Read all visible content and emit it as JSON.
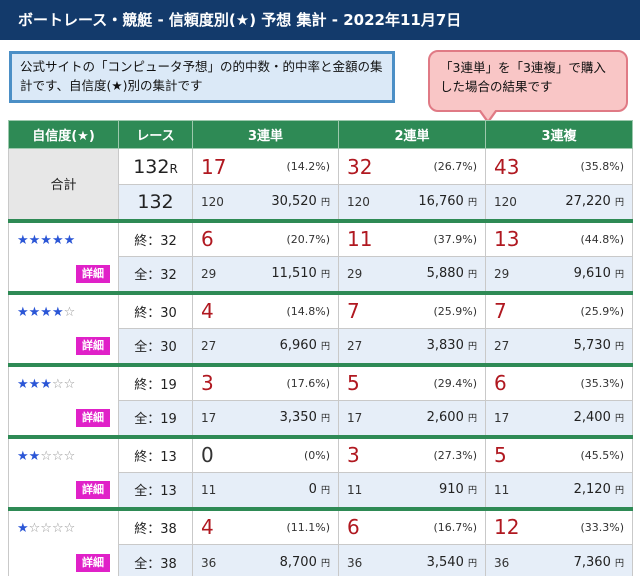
{
  "header": {
    "title": "ボートレース・競艇 - 信頼度別(★) 予想 集計 - 2022年11月7日"
  },
  "note": {
    "text": "公式サイトの「コンピュータ予想」の的中数・的中率と金額の集計です、自信度(★)別の集計です"
  },
  "bubble": {
    "text": "「3連単」を「3連複」で購入した場合の結果です"
  },
  "table": {
    "headers": [
      "自信度(★)",
      "レース",
      "3連単",
      "2連単",
      "3連複"
    ],
    "total": {
      "label": "合計",
      "hit_races": "132",
      "hit_races_unit": "R",
      "pay_races": "132",
      "cols": [
        {
          "hits": "17",
          "pct": "(14.2%)",
          "count": "120",
          "amount": "30,520",
          "unit": "円"
        },
        {
          "hits": "32",
          "pct": "(26.7%)",
          "count": "120",
          "amount": "16,760",
          "unit": "円"
        },
        {
          "hits": "43",
          "pct": "(35.8%)",
          "count": "120",
          "amount": "27,220",
          "unit": "円"
        }
      ]
    },
    "groups": [
      {
        "stars_filled": "★★★★★",
        "stars_empty": "",
        "detail": "詳細",
        "end_label": "終：32",
        "all_label": "全：32",
        "cols": [
          {
            "hits": "6",
            "pct": "(20.7%)",
            "count": "29",
            "amount": "11,510",
            "unit": "円"
          },
          {
            "hits": "11",
            "pct": "(37.9%)",
            "count": "29",
            "amount": "5,880",
            "unit": "円"
          },
          {
            "hits": "13",
            "pct": "(44.8%)",
            "count": "29",
            "amount": "9,610",
            "unit": "円"
          }
        ]
      },
      {
        "stars_filled": "★★★★",
        "stars_empty": "☆",
        "detail": "詳細",
        "end_label": "終：30",
        "all_label": "全：30",
        "cols": [
          {
            "hits": "4",
            "pct": "(14.8%)",
            "count": "27",
            "amount": "6,960",
            "unit": "円"
          },
          {
            "hits": "7",
            "pct": "(25.9%)",
            "count": "27",
            "amount": "3,830",
            "unit": "円"
          },
          {
            "hits": "7",
            "pct": "(25.9%)",
            "count": "27",
            "amount": "5,730",
            "unit": "円"
          }
        ]
      },
      {
        "stars_filled": "★★★",
        "stars_empty": "☆☆",
        "detail": "詳細",
        "end_label": "終：19",
        "all_label": "全：19",
        "cols": [
          {
            "hits": "3",
            "pct": "(17.6%)",
            "count": "17",
            "amount": "3,350",
            "unit": "円"
          },
          {
            "hits": "5",
            "pct": "(29.4%)",
            "count": "17",
            "amount": "2,600",
            "unit": "円"
          },
          {
            "hits": "6",
            "pct": "(35.3%)",
            "count": "17",
            "amount": "2,400",
            "unit": "円"
          }
        ]
      },
      {
        "stars_filled": "★★",
        "stars_empty": "☆☆☆",
        "detail": "詳細",
        "end_label": "終：13",
        "all_label": "全：13",
        "cols": [
          {
            "hits": "0",
            "pct": "(0%)",
            "count": "11",
            "amount": "0",
            "unit": "円"
          },
          {
            "hits": "3",
            "pct": "(27.3%)",
            "count": "11",
            "amount": "910",
            "unit": "円"
          },
          {
            "hits": "5",
            "pct": "(45.5%)",
            "count": "11",
            "amount": "2,120",
            "unit": "円"
          }
        ]
      },
      {
        "stars_filled": "★",
        "stars_empty": "☆☆☆☆",
        "detail": "詳細",
        "end_label": "終：38",
        "all_label": "全：38",
        "cols": [
          {
            "hits": "4",
            "pct": "(11.1%)",
            "count": "36",
            "amount": "8,700",
            "unit": "円"
          },
          {
            "hits": "6",
            "pct": "(16.7%)",
            "count": "36",
            "amount": "3,540",
            "unit": "円"
          },
          {
            "hits": "12",
            "pct": "(33.3%)",
            "count": "36",
            "amount": "7,360",
            "unit": "円"
          }
        ]
      }
    ]
  }
}
